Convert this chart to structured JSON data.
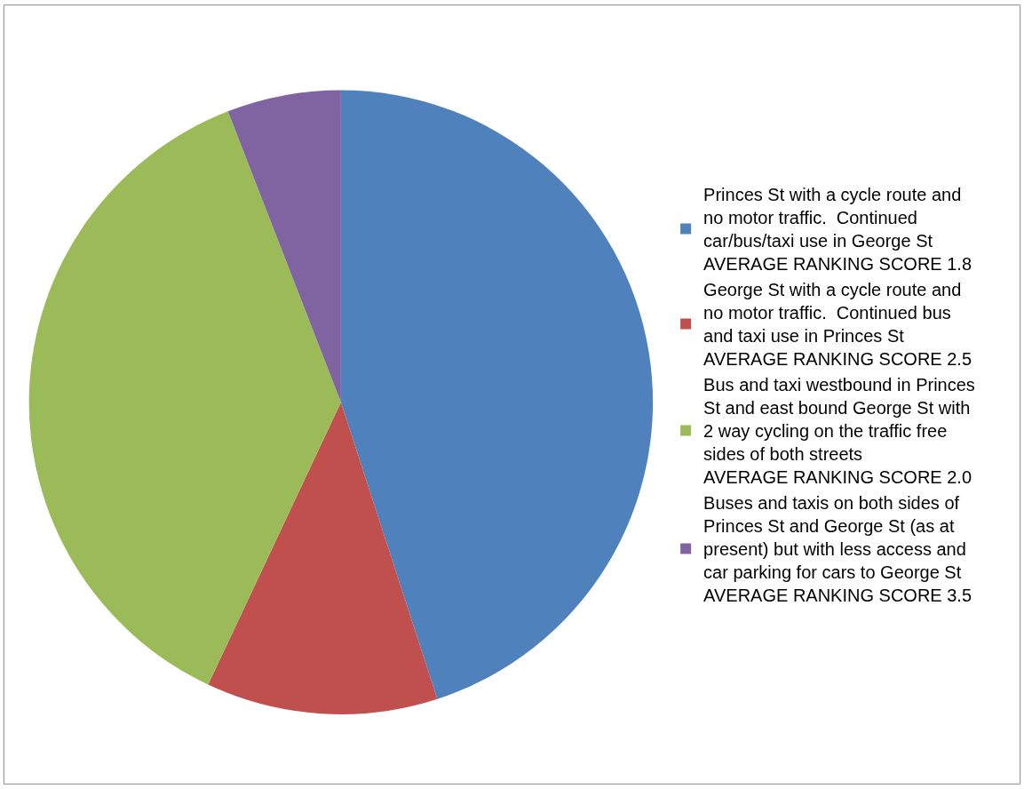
{
  "chart_data": {
    "type": "pie",
    "categories": [
      "Princes St with a cycle route and\nno motor traffic.  Continued\ncar/bus/taxi use in George St\nAVERAGE RANKING SCORE 1.8",
      "George St with a cycle route and\nno motor traffic.  Continued bus\nand taxi use in Princes St\nAVERAGE RANKING SCORE 2.5",
      "Bus and taxi westbound in Princes\nSt and east bound George St with\n2 way cycling on the traffic free\nsides of both streets\nAVERAGE RANKING SCORE 2.0",
      "Buses and taxis on both sides of\nPrinces St and George St (as at\npresent) but with less access and\ncar parking for cars to George St\nAVERAGE RANKING SCORE 3.5"
    ],
    "values": [
      45.0,
      12.0,
      37.1,
      5.9
    ],
    "colors": [
      "#4f81bd",
      "#c0504d",
      "#9bbb59",
      "#8064a2"
    ],
    "legend": "right"
  }
}
